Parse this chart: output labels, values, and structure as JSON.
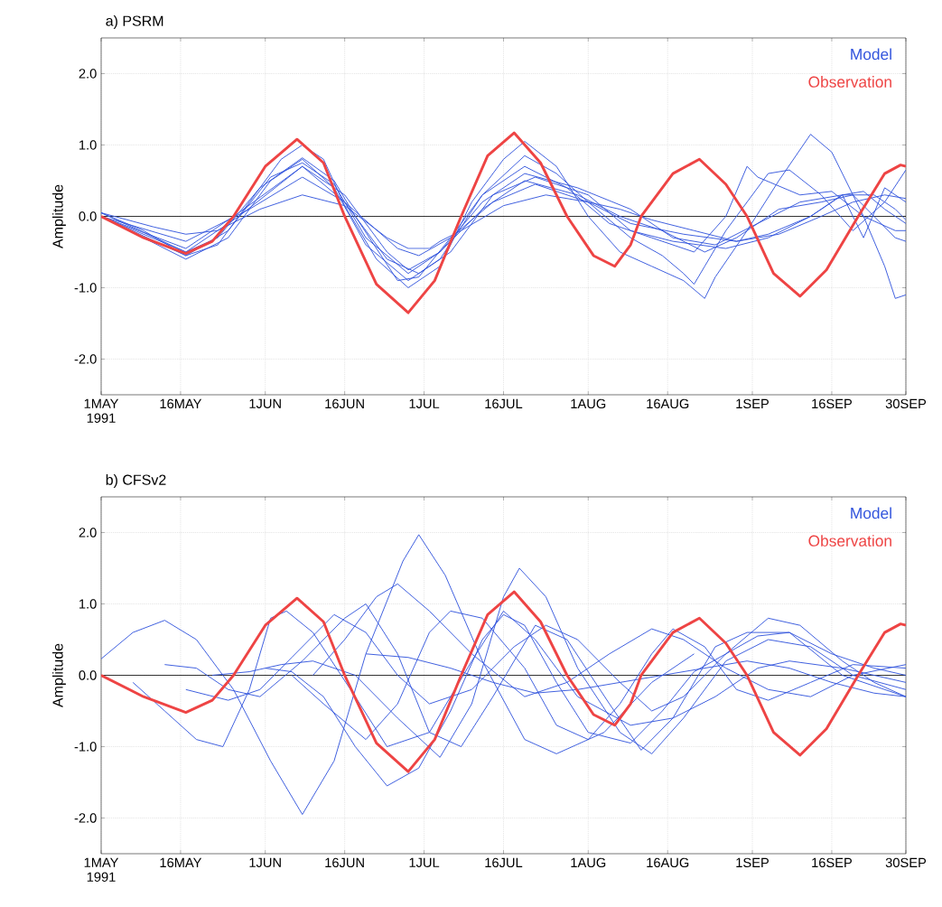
{
  "chart_data": [
    {
      "type": "line",
      "title": "a) PSRM",
      "ylabel": "Amplitude",
      "xlim": [
        "1991-05-01",
        "1991-09-30"
      ],
      "ylim": [
        -2.5,
        2.5
      ],
      "xticks": [
        {
          "value": "1991-05-01",
          "label": "1MAY 1991"
        },
        {
          "value": "1991-05-16",
          "label": "16MAY"
        },
        {
          "value": "1991-06-01",
          "label": "1JUN"
        },
        {
          "value": "1991-06-16",
          "label": "16JUN"
        },
        {
          "value": "1991-07-01",
          "label": "1JUL"
        },
        {
          "value": "1991-07-16",
          "label": "16JUL"
        },
        {
          "value": "1991-08-01",
          "label": "1AUG"
        },
        {
          "value": "1991-08-16",
          "label": "16AUG"
        },
        {
          "value": "1991-09-01",
          "label": "1SEP"
        },
        {
          "value": "1991-09-16",
          "label": "16SEP"
        },
        {
          "value": "1991-09-30",
          "label": "30SEP"
        }
      ],
      "yticks": [
        {
          "value": -2,
          "label": "-2.0"
        },
        {
          "value": -1,
          "label": "-1.0"
        },
        {
          "value": 0,
          "label": "0.0"
        },
        {
          "value": 1,
          "label": "1.0"
        },
        {
          "value": 2,
          "label": "2.0"
        }
      ],
      "grid": true,
      "legend": "top right",
      "ref_lines": [
        {
          "axis": "y",
          "value": 0,
          "color": "#000000"
        }
      ],
      "series": [
        {
          "name": "Model",
          "color": "#3355dd",
          "x": [
            "1991-05-01",
            "1991-05-09",
            "1991-05-17",
            "1991-05-23",
            "1991-05-29",
            "1991-06-04",
            "1991-06-08",
            "1991-06-12",
            "1991-06-16",
            "1991-06-22",
            "1991-06-28",
            "1991-07-04",
            "1991-07-10",
            "1991-07-16",
            "1991-07-20",
            "1991-07-26",
            "1991-08-01",
            "1991-08-07",
            "1991-08-13",
            "1991-08-19",
            "1991-08-23",
            "1991-08-25",
            "1991-08-31",
            "1991-09-06",
            "1991-09-12",
            "1991-09-16",
            "1991-09-22",
            "1991-09-26",
            "1991-09-28",
            "1991-09-30"
          ],
          "values": [
            0.05,
            -0.2,
            -0.55,
            -0.4,
            0.2,
            0.8,
            1.0,
            0.8,
            0.15,
            -0.6,
            -1.0,
            -0.7,
            0.2,
            0.8,
            1.05,
            0.7,
            0.0,
            -0.5,
            -0.7,
            -0.9,
            -1.15,
            -0.85,
            -0.2,
            0.5,
            1.15,
            0.9,
            0.0,
            -0.7,
            -1.15,
            -1.1
          ]
        },
        {
          "color": "#3355dd",
          "x": [
            "1991-05-01",
            "1991-05-17",
            "1991-05-23",
            "1991-05-31",
            "1991-06-08",
            "1991-06-14",
            "1991-06-18",
            "1991-06-26",
            "1991-06-30",
            "1991-07-06",
            "1991-07-12",
            "1991-07-20",
            "1991-07-26",
            "1991-08-01",
            "1991-08-09",
            "1991-08-15",
            "1991-08-19",
            "1991-08-21",
            "1991-08-23",
            "1991-08-27",
            "1991-09-04",
            "1991-09-08",
            "1991-09-14",
            "1991-09-20",
            "1991-09-26",
            "1991-09-30"
          ],
          "values": [
            0.05,
            -0.5,
            -0.3,
            0.4,
            0.82,
            0.5,
            0.0,
            -0.9,
            -0.85,
            -0.3,
            0.3,
            0.85,
            0.6,
            0.2,
            -0.3,
            -0.55,
            -0.8,
            -0.95,
            -0.7,
            -0.2,
            0.6,
            0.65,
            0.3,
            -0.2,
            0.2,
            0.65
          ]
        },
        {
          "color": "#3355dd",
          "x": [
            "1991-05-01",
            "1991-05-17",
            "1991-05-25",
            "1991-06-02",
            "1991-06-08",
            "1991-06-14",
            "1991-06-20",
            "1991-06-28",
            "1991-07-04",
            "1991-07-12",
            "1991-07-20",
            "1991-07-28",
            "1991-08-05",
            "1991-08-13",
            "1991-08-21",
            "1991-08-27",
            "1991-08-31",
            "1991-09-02",
            "1991-09-10",
            "1991-09-16",
            "1991-09-22",
            "1991-09-28",
            "1991-09-30"
          ],
          "values": [
            0.0,
            -0.6,
            -0.3,
            0.5,
            0.8,
            0.4,
            -0.4,
            -0.9,
            -0.6,
            0.3,
            0.7,
            0.4,
            -0.1,
            -0.3,
            -0.5,
            0.0,
            0.7,
            0.55,
            0.3,
            0.35,
            0.0,
            -0.2,
            -0.2
          ]
        },
        {
          "color": "#3355dd",
          "x": [
            "1991-05-01",
            "1991-05-17",
            "1991-05-25",
            "1991-06-02",
            "1991-06-08",
            "1991-06-14",
            "1991-06-20",
            "1991-06-28",
            "1991-07-04",
            "1991-07-12",
            "1991-07-20",
            "1991-07-30",
            "1991-08-09",
            "1991-08-17",
            "1991-08-25",
            "1991-09-02",
            "1991-09-10",
            "1991-09-18",
            "1991-09-22",
            "1991-09-26",
            "1991-09-30"
          ],
          "values": [
            0.0,
            -0.55,
            -0.2,
            0.55,
            0.75,
            0.45,
            -0.3,
            -0.8,
            -0.5,
            0.2,
            0.6,
            0.4,
            0.1,
            -0.3,
            -0.4,
            -0.1,
            0.2,
            0.3,
            -0.3,
            0.4,
            0.2
          ]
        },
        {
          "color": "#3355dd",
          "x": [
            "1991-05-01",
            "1991-05-17",
            "1991-05-27",
            "1991-06-08",
            "1991-06-16",
            "1991-06-24",
            "1991-06-28",
            "1991-07-04",
            "1991-07-12",
            "1991-07-20",
            "1991-07-30",
            "1991-08-07",
            "1991-08-15",
            "1991-08-23",
            "1991-08-29",
            "1991-09-06",
            "1991-09-14",
            "1991-09-20",
            "1991-09-24",
            "1991-09-28",
            "1991-09-30"
          ],
          "values": [
            0.0,
            -0.5,
            0.0,
            0.7,
            0.3,
            -0.5,
            -0.75,
            -0.5,
            0.1,
            0.5,
            0.3,
            0.0,
            -0.2,
            -0.5,
            -0.3,
            0.1,
            0.2,
            0.3,
            0.0,
            -0.3,
            -0.35
          ]
        },
        {
          "color": "#3355dd",
          "x": [
            "1991-05-01",
            "1991-05-17",
            "1991-05-27",
            "1991-06-08",
            "1991-06-16",
            "1991-06-24",
            "1991-06-30",
            "1991-07-06",
            "1991-07-14",
            "1991-07-22",
            "1991-08-01",
            "1991-08-09",
            "1991-08-17",
            "1991-08-27",
            "1991-09-04",
            "1991-09-12",
            "1991-09-18",
            "1991-09-24",
            "1991-09-28",
            "1991-09-30"
          ],
          "values": [
            0.0,
            -0.45,
            0.05,
            0.7,
            0.2,
            -0.6,
            -0.8,
            -0.5,
            0.3,
            0.55,
            0.3,
            -0.2,
            -0.35,
            -0.45,
            -0.3,
            0.0,
            0.3,
            0.3,
            0.1,
            -0.05
          ]
        },
        {
          "color": "#3355dd",
          "x": [
            "1991-05-01",
            "1991-05-17",
            "1991-05-29",
            "1991-06-08",
            "1991-06-16",
            "1991-06-26",
            "1991-06-30",
            "1991-07-06",
            "1991-07-14",
            "1991-07-22",
            "1991-08-01",
            "1991-08-09",
            "1991-08-19",
            "1991-08-29",
            "1991-09-06",
            "1991-09-14",
            "1991-09-20",
            "1991-09-26",
            "1991-09-30"
          ],
          "values": [
            0.0,
            -0.35,
            0.1,
            0.55,
            0.2,
            -0.45,
            -0.55,
            -0.3,
            0.2,
            0.45,
            0.2,
            -0.1,
            -0.25,
            -0.35,
            -0.25,
            0.0,
            0.2,
            0.3,
            0.25
          ]
        },
        {
          "color": "#3355dd",
          "x": [
            "1991-05-01",
            "1991-05-11",
            "1991-05-17",
            "1991-05-23",
            "1991-05-31",
            "1991-06-08",
            "1991-06-16",
            "1991-06-24",
            "1991-06-28",
            "1991-07-02",
            "1991-07-04",
            "1991-07-08",
            "1991-07-16",
            "1991-07-24",
            "1991-08-01",
            "1991-08-07",
            "1991-08-13",
            "1991-08-21",
            "1991-08-29",
            "1991-09-04",
            "1991-09-12",
            "1991-09-18",
            "1991-09-22",
            "1991-09-26",
            "1991-09-30"
          ],
          "values": [
            0.05,
            -0.15,
            -0.25,
            -0.2,
            0.1,
            0.3,
            0.15,
            -0.3,
            -0.45,
            -0.45,
            -0.35,
            -0.2,
            0.15,
            0.3,
            0.2,
            0.1,
            -0.05,
            -0.2,
            -0.35,
            -0.25,
            0.0,
            0.3,
            0.35,
            0.1,
            -0.1
          ]
        },
        {
          "name": "Observation",
          "color": "#ee4444",
          "x": [
            "1991-05-01",
            "1991-05-09",
            "1991-05-17",
            "1991-05-22",
            "1991-05-26",
            "1991-06-01",
            "1991-06-07",
            "1991-06-12",
            "1991-06-16",
            "1991-06-22",
            "1991-06-28",
            "1991-07-03",
            "1991-07-08",
            "1991-07-13",
            "1991-07-18",
            "1991-07-23",
            "1991-07-28",
            "1991-08-02",
            "1991-08-06",
            "1991-08-09",
            "1991-08-11",
            "1991-08-17",
            "1991-08-22",
            "1991-08-27",
            "1991-08-31",
            "1991-09-05",
            "1991-09-10",
            "1991-09-15",
            "1991-09-21",
            "1991-09-26",
            "1991-09-29",
            "1991-09-30"
          ],
          "values": [
            0.0,
            -0.3,
            -0.52,
            -0.35,
            0.0,
            0.7,
            1.08,
            0.75,
            0.0,
            -0.95,
            -1.35,
            -0.9,
            0.0,
            0.85,
            1.17,
            0.75,
            0.0,
            -0.55,
            -0.7,
            -0.4,
            0.0,
            0.6,
            0.8,
            0.45,
            0.0,
            -0.8,
            -1.12,
            -0.75,
            0.0,
            0.6,
            0.72,
            0.7
          ]
        }
      ]
    },
    {
      "type": "line",
      "title": "b) CFSv2",
      "ylabel": "Amplitude",
      "xlim": [
        "1991-05-01",
        "1991-09-30"
      ],
      "ylim": [
        -2.5,
        2.5
      ],
      "xticks": [
        {
          "value": "1991-05-01",
          "label": "1MAY 1991"
        },
        {
          "value": "1991-05-16",
          "label": "16MAY"
        },
        {
          "value": "1991-06-01",
          "label": "1JUN"
        },
        {
          "value": "1991-06-16",
          "label": "16JUN"
        },
        {
          "value": "1991-07-01",
          "label": "1JUL"
        },
        {
          "value": "1991-07-16",
          "label": "16JUL"
        },
        {
          "value": "1991-08-01",
          "label": "1AUG"
        },
        {
          "value": "1991-08-16",
          "label": "16AUG"
        },
        {
          "value": "1991-09-01",
          "label": "1SEP"
        },
        {
          "value": "1991-09-16",
          "label": "16SEP"
        },
        {
          "value": "1991-09-30",
          "label": "30SEP"
        }
      ],
      "yticks": [
        {
          "value": -2,
          "label": "-2.0"
        },
        {
          "value": -1,
          "label": "-1.0"
        },
        {
          "value": 0,
          "label": "0.0"
        },
        {
          "value": 1,
          "label": "1.0"
        },
        {
          "value": 2,
          "label": "2.0"
        }
      ],
      "grid": true,
      "legend": "top right",
      "ref_lines": [
        {
          "axis": "y",
          "value": 0,
          "color": "#000000"
        }
      ],
      "series": [
        {
          "name": "Model",
          "color": "#3355dd",
          "x": [
            "1991-05-01",
            "1991-05-07",
            "1991-05-13",
            "1991-05-19",
            "1991-05-26",
            "1991-06-02",
            "1991-06-08",
            "1991-06-14",
            "1991-06-20",
            "1991-06-27",
            "1991-06-30",
            "1991-07-05",
            "1991-07-12",
            "1991-07-20",
            "1991-07-26",
            "1991-08-04",
            "1991-08-13",
            "1991-08-21"
          ],
          "values": [
            0.23,
            0.6,
            0.77,
            0.5,
            -0.2,
            -1.2,
            -1.95,
            -1.2,
            0.3,
            1.6,
            1.97,
            1.4,
            0.2,
            -0.9,
            -1.1,
            -0.8,
            -0.1,
            0.3
          ]
        },
        {
          "color": "#3355dd",
          "x": [
            "1991-05-07",
            "1991-05-13",
            "1991-05-19",
            "1991-05-24",
            "1991-05-29",
            "1991-06-02",
            "1991-06-05",
            "1991-06-10",
            "1991-06-18",
            "1991-06-24",
            "1991-07-02",
            "1991-07-10",
            "1991-07-16",
            "1991-07-22",
            "1991-07-30",
            "1991-08-09",
            "1991-08-17",
            "1991-08-25",
            "1991-09-02",
            "1991-09-08",
            "1991-09-18",
            "1991-09-30"
          ],
          "values": [
            -0.1,
            -0.5,
            -0.9,
            -1.0,
            -0.2,
            0.8,
            0.9,
            0.6,
            -0.3,
            -1.0,
            -0.8,
            0.2,
            0.9,
            0.5,
            -0.3,
            -0.7,
            -0.6,
            -0.3,
            0.1,
            0.2,
            0.1,
            -0.1
          ]
        },
        {
          "color": "#3355dd",
          "x": [
            "1991-05-13",
            "1991-05-19",
            "1991-05-25",
            "1991-05-31",
            "1991-06-08",
            "1991-06-16",
            "1991-06-20",
            "1991-06-26",
            "1991-07-02",
            "1991-07-08",
            "1991-07-14",
            "1991-07-22",
            "1991-07-28",
            "1991-08-05",
            "1991-08-11",
            "1991-08-17",
            "1991-08-25",
            "1991-08-31",
            "1991-09-08",
            "1991-09-18",
            "1991-09-30"
          ],
          "values": [
            0.15,
            0.1,
            -0.2,
            -0.3,
            0.2,
            0.8,
            1.0,
            0.3,
            -0.8,
            -1.0,
            -0.3,
            0.7,
            0.5,
            -0.4,
            -1.05,
            -0.6,
            0.4,
            0.6,
            0.6,
            0.0,
            -0.3
          ]
        },
        {
          "color": "#3355dd",
          "x": [
            "1991-05-17",
            "1991-05-25",
            "1991-05-31",
            "1991-06-06",
            "1991-06-14",
            "1991-06-20",
            "1991-06-26",
            "1991-07-02",
            "1991-07-10",
            "1991-07-18",
            "1991-07-24",
            "1991-07-30",
            "1991-08-07",
            "1991-08-13",
            "1991-08-19",
            "1991-08-27",
            "1991-09-04",
            "1991-09-10",
            "1991-09-18",
            "1991-09-24",
            "1991-09-30"
          ],
          "values": [
            -0.2,
            -0.35,
            -0.2,
            0.25,
            0.85,
            0.6,
            0.0,
            -0.4,
            -0.2,
            0.4,
            0.7,
            0.5,
            -0.1,
            -0.5,
            -0.3,
            0.3,
            0.8,
            0.7,
            0.2,
            -0.1,
            -0.3
          ]
        },
        {
          "color": "#3355dd",
          "x": [
            "1991-05-22",
            "1991-05-29",
            "1991-06-04",
            "1991-06-10",
            "1991-06-18",
            "1991-06-26",
            "1991-07-04",
            "1991-07-10",
            "1991-07-16",
            "1991-07-19",
            "1991-07-24",
            "1991-07-30",
            "1991-08-07",
            "1991-08-13",
            "1991-08-19",
            "1991-08-27",
            "1991-09-04",
            "1991-09-12",
            "1991-09-20",
            "1991-09-30"
          ],
          "values": [
            0.0,
            0.05,
            0.15,
            0.2,
            0.0,
            -0.6,
            -1.15,
            -0.4,
            1.1,
            1.5,
            1.1,
            0.1,
            -0.8,
            -1.1,
            -0.6,
            0.2,
            0.5,
            0.4,
            0.0,
            -0.2
          ]
        },
        {
          "color": "#3355dd",
          "x": [
            "1991-06-01",
            "1991-06-06",
            "1991-06-12",
            "1991-06-18",
            "1991-06-24",
            "1991-06-30",
            "1991-07-06",
            "1991-07-12",
            "1991-07-16",
            "1991-07-20",
            "1991-07-26",
            "1991-08-01",
            "1991-08-09",
            "1991-08-15",
            "1991-08-21",
            "1991-08-27",
            "1991-09-02",
            "1991-09-08",
            "1991-09-16",
            "1991-09-24",
            "1991-09-30"
          ],
          "values": [
            0.1,
            0.05,
            -0.3,
            -1.0,
            -1.55,
            -1.3,
            -0.5,
            0.5,
            0.85,
            0.7,
            -0.1,
            -0.8,
            -0.95,
            -0.5,
            0.05,
            0.3,
            0.55,
            0.6,
            0.3,
            0.1,
            0.0
          ]
        },
        {
          "color": "#3355dd",
          "x": [
            "1991-06-06",
            "1991-06-12",
            "1991-06-20",
            "1991-06-26",
            "1991-07-02",
            "1991-07-06",
            "1991-07-12",
            "1991-07-20",
            "1991-07-26",
            "1991-08-01",
            "1991-08-07",
            "1991-08-13",
            "1991-08-17",
            "1991-08-23",
            "1991-08-29",
            "1991-09-04",
            "1991-09-12",
            "1991-09-20",
            "1991-09-30"
          ],
          "values": [
            0.0,
            -0.4,
            -0.9,
            -0.4,
            0.6,
            0.9,
            0.8,
            0.1,
            -0.7,
            -0.9,
            -0.4,
            0.3,
            0.65,
            0.4,
            -0.2,
            -0.35,
            -0.1,
            0.15,
            0.1
          ]
        },
        {
          "color": "#3355dd",
          "x": [
            "1991-06-10",
            "1991-06-16",
            "1991-06-22",
            "1991-06-26",
            "1991-07-02",
            "1991-07-10",
            "1991-07-20",
            "1991-07-28",
            "1991-08-05",
            "1991-08-13",
            "1991-08-19",
            "1991-08-27",
            "1991-09-04",
            "1991-09-12",
            "1991-09-20",
            "1991-09-30"
          ],
          "values": [
            0.0,
            0.5,
            1.1,
            1.28,
            0.9,
            0.3,
            -0.3,
            -0.1,
            0.3,
            0.65,
            0.5,
            0.1,
            -0.2,
            -0.3,
            0.0,
            0.15
          ]
        },
        {
          "color": "#3355dd",
          "x": [
            "1991-06-20",
            "1991-06-28",
            "1991-07-06",
            "1991-07-14",
            "1991-07-22",
            "1991-07-30",
            "1991-08-07",
            "1991-08-15",
            "1991-08-23",
            "1991-08-31",
            "1991-09-08",
            "1991-09-16",
            "1991-09-24",
            "1991-09-30"
          ],
          "values": [
            0.3,
            0.25,
            0.1,
            -0.1,
            -0.25,
            -0.2,
            -0.1,
            0.0,
            0.1,
            0.2,
            0.1,
            -0.1,
            -0.25,
            -0.3
          ]
        },
        {
          "name": "Observation",
          "color": "#ee4444",
          "x": [
            "1991-05-01",
            "1991-05-09",
            "1991-05-17",
            "1991-05-22",
            "1991-05-26",
            "1991-06-01",
            "1991-06-07",
            "1991-06-12",
            "1991-06-16",
            "1991-06-22",
            "1991-06-28",
            "1991-07-03",
            "1991-07-08",
            "1991-07-13",
            "1991-07-18",
            "1991-07-23",
            "1991-07-28",
            "1991-08-02",
            "1991-08-06",
            "1991-08-09",
            "1991-08-11",
            "1991-08-17",
            "1991-08-22",
            "1991-08-27",
            "1991-08-31",
            "1991-09-05",
            "1991-09-10",
            "1991-09-15",
            "1991-09-21",
            "1991-09-26",
            "1991-09-29",
            "1991-09-30"
          ],
          "values": [
            0.0,
            -0.3,
            -0.52,
            -0.35,
            0.0,
            0.7,
            1.08,
            0.75,
            0.0,
            -0.95,
            -1.35,
            -0.9,
            0.0,
            0.85,
            1.17,
            0.75,
            0.0,
            -0.55,
            -0.7,
            -0.4,
            0.0,
            0.6,
            0.8,
            0.45,
            0.0,
            -0.8,
            -1.12,
            -0.75,
            0.0,
            0.6,
            0.72,
            0.7
          ]
        }
      ]
    }
  ]
}
